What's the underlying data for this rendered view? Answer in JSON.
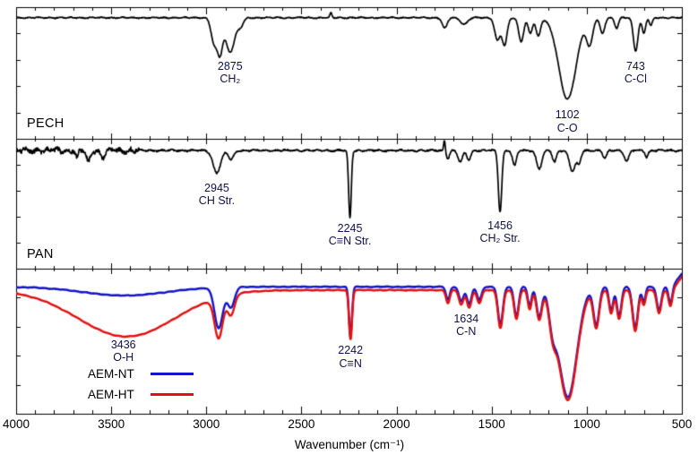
{
  "figure": {
    "bg": "#ffffff",
    "frame_color": "#000000",
    "xlabel": "Wavenumber (cm⁻¹)",
    "x_min": 500,
    "x_max": 4000,
    "reversed": true,
    "x_major_ticks": [
      4000,
      3500,
      3000,
      2500,
      2000,
      1500,
      1000,
      500
    ],
    "x_minor_step": 100,
    "annotation_color": "#10104a"
  },
  "chart_data": [
    {
      "type": "line",
      "id": "pech",
      "label": "PECH",
      "x_range": [
        4000,
        500
      ],
      "series": [
        {
          "name": "PECH",
          "color": "#000000",
          "baseline": 0.08,
          "noise": [
            0.005,
            0.003
          ],
          "peaks": [
            [
              2958,
              0.2,
              16
            ],
            [
              2928,
              0.24,
              13
            ],
            [
              2875,
              0.26,
              24
            ],
            [
              2820,
              0.06,
              15
            ],
            [
              2345,
              -0.035,
              5
            ],
            [
              1747,
              0.08,
              13
            ],
            [
              1645,
              0.05,
              18
            ],
            [
              1470,
              0.17,
              14
            ],
            [
              1432,
              0.21,
              13
            ],
            [
              1345,
              0.18,
              13
            ],
            [
              1297,
              0.12,
              11
            ],
            [
              1255,
              0.14,
              12
            ],
            [
              1102,
              0.62,
              45
            ],
            [
              985,
              0.2,
              16
            ],
            [
              918,
              0.12,
              12
            ],
            [
              843,
              0.08,
              10
            ],
            [
              743,
              0.25,
              12
            ],
            [
              700,
              0.12,
              9
            ],
            [
              663,
              0.06,
              8
            ]
          ]
        }
      ],
      "annotations": [
        {
          "x": 2875,
          "y": 0.4,
          "line1": "2875",
          "line2": "CH₂"
        },
        {
          "x": 1102,
          "y": 0.77,
          "line1": "1102",
          "line2": "C-O"
        },
        {
          "x": 743,
          "y": 0.4,
          "line1": "743",
          "line2": "C-Cl"
        }
      ]
    },
    {
      "type": "line",
      "id": "pan",
      "label": "PAN",
      "x_range": [
        4000,
        500
      ],
      "series": [
        {
          "name": "PAN",
          "color": "#000000",
          "baseline": 0.09,
          "noise": [
            0.007,
            0.005
          ],
          "noise_boost": {
            "above": 3350,
            "factor": 3
          },
          "peaks": [
            [
              3680,
              0.06,
              8
            ],
            [
              3620,
              0.09,
              10
            ],
            [
              3545,
              0.05,
              12
            ],
            [
              2945,
              0.17,
              20
            ],
            [
              2870,
              0.07,
              14
            ],
            [
              2245,
              0.52,
              7
            ],
            [
              1748,
              -0.09,
              4
            ],
            [
              1730,
              0.06,
              8
            ],
            [
              1665,
              0.09,
              12
            ],
            [
              1620,
              0.07,
              10
            ],
            [
              1456,
              0.47,
              9
            ],
            [
              1380,
              0.12,
              10
            ],
            [
              1250,
              0.14,
              14
            ],
            [
              1170,
              0.09,
              10
            ],
            [
              1075,
              0.16,
              16
            ],
            [
              1040,
              0.09,
              10
            ],
            [
              905,
              0.06,
              10
            ],
            [
              790,
              0.08,
              12
            ],
            [
              685,
              0.05,
              8
            ]
          ]
        }
      ],
      "annotations": [
        {
          "x": 2945,
          "y": 0.33,
          "line1": "2945",
          "line2": "CH Str."
        },
        {
          "x": 2245,
          "y": 0.64,
          "line1": "2245",
          "line2": "C≡N Str."
        },
        {
          "x": 1456,
          "y": 0.62,
          "line1": "1456",
          "line2": "CH₂ Str."
        }
      ]
    },
    {
      "type": "line",
      "id": "aem",
      "label": "",
      "x_range": [
        4000,
        500
      ],
      "series": [
        {
          "name": "AEM-NT",
          "color": "#1414cc",
          "baseline": 0.125,
          "noise": [
            0.0025,
            0.0012
          ],
          "peaks": [
            [
              3430,
              0.06,
              220
            ],
            [
              2935,
              0.28,
              22
            ],
            [
              2870,
              0.14,
              18
            ],
            [
              2242,
              0.34,
              8
            ],
            [
              1730,
              0.09,
              10
            ],
            [
              1660,
              0.1,
              12
            ],
            [
              1618,
              0.12,
              12
            ],
            [
              1565,
              0.09,
              12
            ],
            [
              1454,
              0.26,
              13
            ],
            [
              1370,
              0.2,
              12
            ],
            [
              1300,
              0.13,
              10
            ],
            [
              1250,
              0.2,
              14
            ],
            [
              1180,
              0.18,
              18
            ],
            [
              1100,
              0.76,
              48
            ],
            [
              950,
              0.26,
              15
            ],
            [
              872,
              0.16,
              11
            ],
            [
              830,
              0.2,
              12
            ],
            [
              745,
              0.28,
              14
            ],
            [
              700,
              0.1,
              9
            ],
            [
              620,
              0.16,
              12
            ],
            [
              560,
              0.12,
              10
            ],
            [
              470,
              -0.12,
              40
            ]
          ]
        },
        {
          "name": "AEM-HT",
          "color": "#e01212",
          "baseline": 0.148,
          "noise": [
            0.0025,
            0.0012
          ],
          "peaks": [
            [
              3420,
              0.32,
              255
            ],
            [
              2935,
              0.28,
              22
            ],
            [
              2870,
              0.14,
              18
            ],
            [
              2242,
              0.34,
              8
            ],
            [
              1730,
              0.09,
              10
            ],
            [
              1660,
              0.1,
              12
            ],
            [
              1618,
              0.12,
              12
            ],
            [
              1565,
              0.09,
              12
            ],
            [
              1454,
              0.26,
              13
            ],
            [
              1370,
              0.2,
              12
            ],
            [
              1300,
              0.13,
              10
            ],
            [
              1250,
              0.2,
              14
            ],
            [
              1180,
              0.18,
              18
            ],
            [
              1100,
              0.76,
              48
            ],
            [
              950,
              0.26,
              15
            ],
            [
              872,
              0.16,
              11
            ],
            [
              830,
              0.2,
              12
            ],
            [
              745,
              0.28,
              14
            ],
            [
              700,
              0.1,
              9
            ],
            [
              620,
              0.16,
              12
            ],
            [
              560,
              0.12,
              10
            ],
            [
              470,
              -0.12,
              40
            ]
          ]
        }
      ],
      "annotations": [
        {
          "x": 3436,
          "y": 0.48,
          "line1": "3436",
          "line2": "O-H"
        },
        {
          "x": 2242,
          "y": 0.52,
          "line1": "2242",
          "line2": "C≡N"
        },
        {
          "x": 1634,
          "y": 0.3,
          "line1": "1634",
          "line2": "C-N"
        }
      ]
    }
  ],
  "legend": {
    "items": [
      {
        "label": "AEM-NT",
        "color": "#1414cc"
      },
      {
        "label": "AEM-HT",
        "color": "#e01212"
      }
    ]
  }
}
